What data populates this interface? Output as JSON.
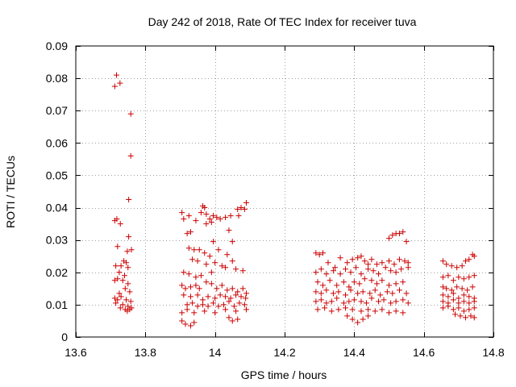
{
  "chart_data": {
    "type": "scatter",
    "title": "Day 242 of 2018, Rate Of TEC Index for receiver tuva",
    "xlabel": "GPS time / hours",
    "ylabel": "ROTI / TECUs",
    "xlim": [
      13.6,
      14.8
    ],
    "ylim": [
      0,
      0.09
    ],
    "x_ticks": [
      13.6,
      13.8,
      14.0,
      14.2,
      14.4,
      14.6,
      14.8
    ],
    "x_tick_labels": [
      "13.6",
      "13.8",
      "14",
      "14.2",
      "14.4",
      "14.6",
      "14.8"
    ],
    "y_ticks": [
      0,
      0.01,
      0.02,
      0.03,
      0.04,
      0.05,
      0.06,
      0.07,
      0.08,
      0.09
    ],
    "y_tick_labels": [
      "0",
      "0.01",
      "0.02",
      "0.03",
      "0.04",
      "0.05",
      "0.06",
      "0.07",
      "0.08",
      "0.09"
    ],
    "grid": true,
    "marker": "+",
    "color": "#cc0000",
    "series": [
      {
        "name": "tuva",
        "points": [
          [
            13.712,
            0.0775
          ],
          [
            13.717,
            0.081
          ],
          [
            13.727,
            0.0785
          ],
          [
            13.758,
            0.069
          ],
          [
            13.758,
            0.056
          ],
          [
            13.752,
            0.0425
          ],
          [
            13.712,
            0.036
          ],
          [
            13.718,
            0.0365
          ],
          [
            13.728,
            0.035
          ],
          [
            13.752,
            0.031
          ],
          [
            13.72,
            0.028
          ],
          [
            13.748,
            0.0265
          ],
          [
            13.76,
            0.027
          ],
          [
            13.738,
            0.0235
          ],
          [
            13.745,
            0.023
          ],
          [
            13.73,
            0.022
          ],
          [
            13.715,
            0.022
          ],
          [
            13.75,
            0.0215
          ],
          [
            13.725,
            0.02
          ],
          [
            13.74,
            0.019
          ],
          [
            13.712,
            0.0175
          ],
          [
            13.72,
            0.018
          ],
          [
            13.735,
            0.0175
          ],
          [
            13.75,
            0.0165
          ],
          [
            13.742,
            0.015
          ],
          [
            13.755,
            0.014
          ],
          [
            13.725,
            0.0135
          ],
          [
            13.712,
            0.012
          ],
          [
            13.72,
            0.0115
          ],
          [
            13.73,
            0.0125
          ],
          [
            13.745,
            0.0115
          ],
          [
            13.758,
            0.011
          ],
          [
            13.715,
            0.0105
          ],
          [
            13.735,
            0.01
          ],
          [
            13.75,
            0.0095
          ],
          [
            13.728,
            0.009
          ],
          [
            13.742,
            0.0085
          ],
          [
            13.755,
            0.0085
          ],
          [
            13.76,
            0.009
          ],
          [
            13.748,
            0.008
          ],
          [
            13.905,
            0.0385
          ],
          [
            13.91,
            0.0365
          ],
          [
            13.925,
            0.0375
          ],
          [
            13.945,
            0.036
          ],
          [
            13.96,
            0.0385
          ],
          [
            13.965,
            0.0405
          ],
          [
            13.97,
            0.04
          ],
          [
            13.975,
            0.038
          ],
          [
            13.985,
            0.0365
          ],
          [
            13.995,
            0.0375
          ],
          [
            14.005,
            0.037
          ],
          [
            14.015,
            0.0365
          ],
          [
            14.03,
            0.037
          ],
          [
            14.045,
            0.0375
          ],
          [
            14.065,
            0.0395
          ],
          [
            14.075,
            0.04
          ],
          [
            14.085,
            0.0395
          ],
          [
            14.09,
            0.0415
          ],
          [
            14.068,
            0.0375
          ],
          [
            13.99,
            0.0355
          ],
          [
            13.975,
            0.035
          ],
          [
            13.92,
            0.032
          ],
          [
            13.93,
            0.0325
          ],
          [
            13.995,
            0.0295
          ],
          [
            14.04,
            0.033
          ],
          [
            14.05,
            0.0295
          ],
          [
            13.925,
            0.0275
          ],
          [
            13.94,
            0.027
          ],
          [
            13.955,
            0.027
          ],
          [
            13.97,
            0.026
          ],
          [
            13.985,
            0.025
          ],
          [
            14.01,
            0.027
          ],
          [
            14.035,
            0.0255
          ],
          [
            13.935,
            0.024
          ],
          [
            13.95,
            0.0235
          ],
          [
            13.975,
            0.0225
          ],
          [
            14.0,
            0.023
          ],
          [
            14.02,
            0.022
          ],
          [
            14.05,
            0.0235
          ],
          [
            14.06,
            0.021
          ],
          [
            13.91,
            0.02
          ],
          [
            13.925,
            0.0195
          ],
          [
            13.945,
            0.0185
          ],
          [
            13.96,
            0.019
          ],
          [
            13.99,
            0.02
          ],
          [
            14.03,
            0.0215
          ],
          [
            14.08,
            0.0205
          ],
          [
            13.905,
            0.016
          ],
          [
            13.915,
            0.015
          ],
          [
            13.93,
            0.0155
          ],
          [
            13.945,
            0.016
          ],
          [
            13.955,
            0.015
          ],
          [
            13.975,
            0.017
          ],
          [
            13.99,
            0.0165
          ],
          [
            14.005,
            0.015
          ],
          [
            14.02,
            0.016
          ],
          [
            14.035,
            0.0145
          ],
          [
            14.05,
            0.015
          ],
          [
            14.065,
            0.014
          ],
          [
            14.08,
            0.015
          ],
          [
            14.09,
            0.0135
          ],
          [
            13.91,
            0.013
          ],
          [
            13.93,
            0.0125
          ],
          [
            13.95,
            0.013
          ],
          [
            13.965,
            0.0115
          ],
          [
            13.98,
            0.0125
          ],
          [
            14.0,
            0.012
          ],
          [
            14.015,
            0.013
          ],
          [
            14.03,
            0.0125
          ],
          [
            14.045,
            0.012
          ],
          [
            14.06,
            0.013
          ],
          [
            14.075,
            0.0125
          ],
          [
            14.088,
            0.012
          ],
          [
            13.92,
            0.01
          ],
          [
            13.935,
            0.0105
          ],
          [
            13.95,
            0.0095
          ],
          [
            13.965,
            0.01
          ],
          [
            13.98,
            0.0095
          ],
          [
            13.995,
            0.0105
          ],
          [
            14.01,
            0.0095
          ],
          [
            14.025,
            0.01
          ],
          [
            14.04,
            0.011
          ],
          [
            14.055,
            0.0095
          ],
          [
            14.07,
            0.0105
          ],
          [
            14.085,
            0.01
          ],
          [
            14.09,
            0.0085
          ],
          [
            13.905,
            0.0075
          ],
          [
            13.92,
            0.0085
          ],
          [
            13.94,
            0.0075
          ],
          [
            13.97,
            0.008
          ],
          [
            14.0,
            0.0075
          ],
          [
            14.03,
            0.0085
          ],
          [
            14.06,
            0.008
          ],
          [
            13.905,
            0.005
          ],
          [
            13.915,
            0.004
          ],
          [
            13.93,
            0.0035
          ],
          [
            13.94,
            0.0045
          ],
          [
            14.04,
            0.006
          ],
          [
            14.05,
            0.005
          ],
          [
            14.065,
            0.0055
          ],
          [
            14.29,
            0.026
          ],
          [
            14.3,
            0.0255
          ],
          [
            14.31,
            0.026
          ],
          [
            14.325,
            0.023
          ],
          [
            14.345,
            0.0215
          ],
          [
            14.36,
            0.0245
          ],
          [
            14.38,
            0.023
          ],
          [
            14.395,
            0.024
          ],
          [
            14.41,
            0.0245
          ],
          [
            14.42,
            0.025
          ],
          [
            14.43,
            0.0235
          ],
          [
            14.44,
            0.0225
          ],
          [
            14.45,
            0.024
          ],
          [
            14.465,
            0.0225
          ],
          [
            14.48,
            0.023
          ],
          [
            14.5,
            0.0235
          ],
          [
            14.515,
            0.0225
          ],
          [
            14.53,
            0.024
          ],
          [
            14.545,
            0.0235
          ],
          [
            14.555,
            0.023
          ],
          [
            14.5,
            0.0305
          ],
          [
            14.51,
            0.0315
          ],
          [
            14.52,
            0.032
          ],
          [
            14.53,
            0.032
          ],
          [
            14.54,
            0.0325
          ],
          [
            14.55,
            0.0295
          ],
          [
            14.29,
            0.02
          ],
          [
            14.305,
            0.021
          ],
          [
            14.32,
            0.0195
          ],
          [
            14.34,
            0.0205
          ],
          [
            14.36,
            0.0195
          ],
          [
            14.375,
            0.021
          ],
          [
            14.39,
            0.02
          ],
          [
            14.405,
            0.0215
          ],
          [
            14.42,
            0.0195
          ],
          [
            14.44,
            0.021
          ],
          [
            14.455,
            0.0205
          ],
          [
            14.47,
            0.0195
          ],
          [
            14.49,
            0.0215
          ],
          [
            14.505,
            0.0205
          ],
          [
            14.52,
            0.02
          ],
          [
            14.535,
            0.021
          ],
          [
            14.555,
            0.0215
          ],
          [
            14.295,
            0.017
          ],
          [
            14.31,
            0.016
          ],
          [
            14.33,
            0.0175
          ],
          [
            14.35,
            0.016
          ],
          [
            14.37,
            0.017
          ],
          [
            14.385,
            0.0155
          ],
          [
            14.4,
            0.017
          ],
          [
            14.415,
            0.0165
          ],
          [
            14.43,
            0.018
          ],
          [
            14.45,
            0.0175
          ],
          [
            14.465,
            0.0165
          ],
          [
            14.48,
            0.0175
          ],
          [
            14.5,
            0.016
          ],
          [
            14.52,
            0.0165
          ],
          [
            14.54,
            0.017
          ],
          [
            14.29,
            0.014
          ],
          [
            14.305,
            0.0135
          ],
          [
            14.32,
            0.0145
          ],
          [
            14.34,
            0.0135
          ],
          [
            14.355,
            0.014
          ],
          [
            14.375,
            0.013
          ],
          [
            14.39,
            0.0145
          ],
          [
            14.41,
            0.0135
          ],
          [
            14.425,
            0.014
          ],
          [
            14.445,
            0.0135
          ],
          [
            14.46,
            0.0145
          ],
          [
            14.475,
            0.013
          ],
          [
            14.495,
            0.014
          ],
          [
            14.51,
            0.0135
          ],
          [
            14.53,
            0.0145
          ],
          [
            14.55,
            0.0135
          ],
          [
            14.29,
            0.011
          ],
          [
            14.305,
            0.0115
          ],
          [
            14.32,
            0.0105
          ],
          [
            14.335,
            0.011
          ],
          [
            14.35,
            0.012
          ],
          [
            14.37,
            0.0105
          ],
          [
            14.385,
            0.011
          ],
          [
            14.4,
            0.0115
          ],
          [
            14.42,
            0.011
          ],
          [
            14.435,
            0.0105
          ],
          [
            14.45,
            0.012
          ],
          [
            14.47,
            0.011
          ],
          [
            14.485,
            0.0115
          ],
          [
            14.505,
            0.0105
          ],
          [
            14.52,
            0.011
          ],
          [
            14.54,
            0.0115
          ],
          [
            14.555,
            0.0105
          ],
          [
            14.295,
            0.0085
          ],
          [
            14.315,
            0.009
          ],
          [
            14.335,
            0.008
          ],
          [
            14.355,
            0.0085
          ],
          [
            14.375,
            0.009
          ],
          [
            14.395,
            0.0085
          ],
          [
            14.42,
            0.008
          ],
          [
            14.44,
            0.0085
          ],
          [
            14.46,
            0.008
          ],
          [
            14.48,
            0.0085
          ],
          [
            14.5,
            0.0075
          ],
          [
            14.52,
            0.008
          ],
          [
            14.54,
            0.0075
          ],
          [
            14.38,
            0.0065
          ],
          [
            14.395,
            0.0055
          ],
          [
            14.41,
            0.0045
          ],
          [
            14.425,
            0.0055
          ],
          [
            14.44,
            0.0065
          ],
          [
            14.655,
            0.0235
          ],
          [
            14.665,
            0.0225
          ],
          [
            14.68,
            0.022
          ],
          [
            14.695,
            0.0215
          ],
          [
            14.71,
            0.022
          ],
          [
            14.72,
            0.0235
          ],
          [
            14.73,
            0.024
          ],
          [
            14.745,
            0.025
          ],
          [
            14.74,
            0.0255
          ],
          [
            14.655,
            0.0185
          ],
          [
            14.67,
            0.019
          ],
          [
            14.685,
            0.0175
          ],
          [
            14.7,
            0.0185
          ],
          [
            14.715,
            0.018
          ],
          [
            14.73,
            0.0185
          ],
          [
            14.745,
            0.019
          ],
          [
            14.655,
            0.0155
          ],
          [
            14.665,
            0.015
          ],
          [
            14.68,
            0.0145
          ],
          [
            14.695,
            0.0155
          ],
          [
            14.71,
            0.015
          ],
          [
            14.725,
            0.0145
          ],
          [
            14.74,
            0.0155
          ],
          [
            14.655,
            0.013
          ],
          [
            14.67,
            0.0125
          ],
          [
            14.685,
            0.0135
          ],
          [
            14.7,
            0.012
          ],
          [
            14.715,
            0.013
          ],
          [
            14.73,
            0.0125
          ],
          [
            14.745,
            0.012
          ],
          [
            14.655,
            0.011
          ],
          [
            14.67,
            0.0105
          ],
          [
            14.685,
            0.0115
          ],
          [
            14.7,
            0.0105
          ],
          [
            14.715,
            0.011
          ],
          [
            14.73,
            0.0105
          ],
          [
            14.745,
            0.011
          ],
          [
            14.655,
            0.009
          ],
          [
            14.67,
            0.0095
          ],
          [
            14.685,
            0.0085
          ],
          [
            14.7,
            0.009
          ],
          [
            14.715,
            0.008
          ],
          [
            14.73,
            0.0085
          ],
          [
            14.745,
            0.009
          ],
          [
            14.69,
            0.007
          ],
          [
            14.705,
            0.0065
          ],
          [
            14.72,
            0.006
          ],
          [
            14.735,
            0.0065
          ],
          [
            14.745,
            0.006
          ]
        ]
      }
    ]
  }
}
